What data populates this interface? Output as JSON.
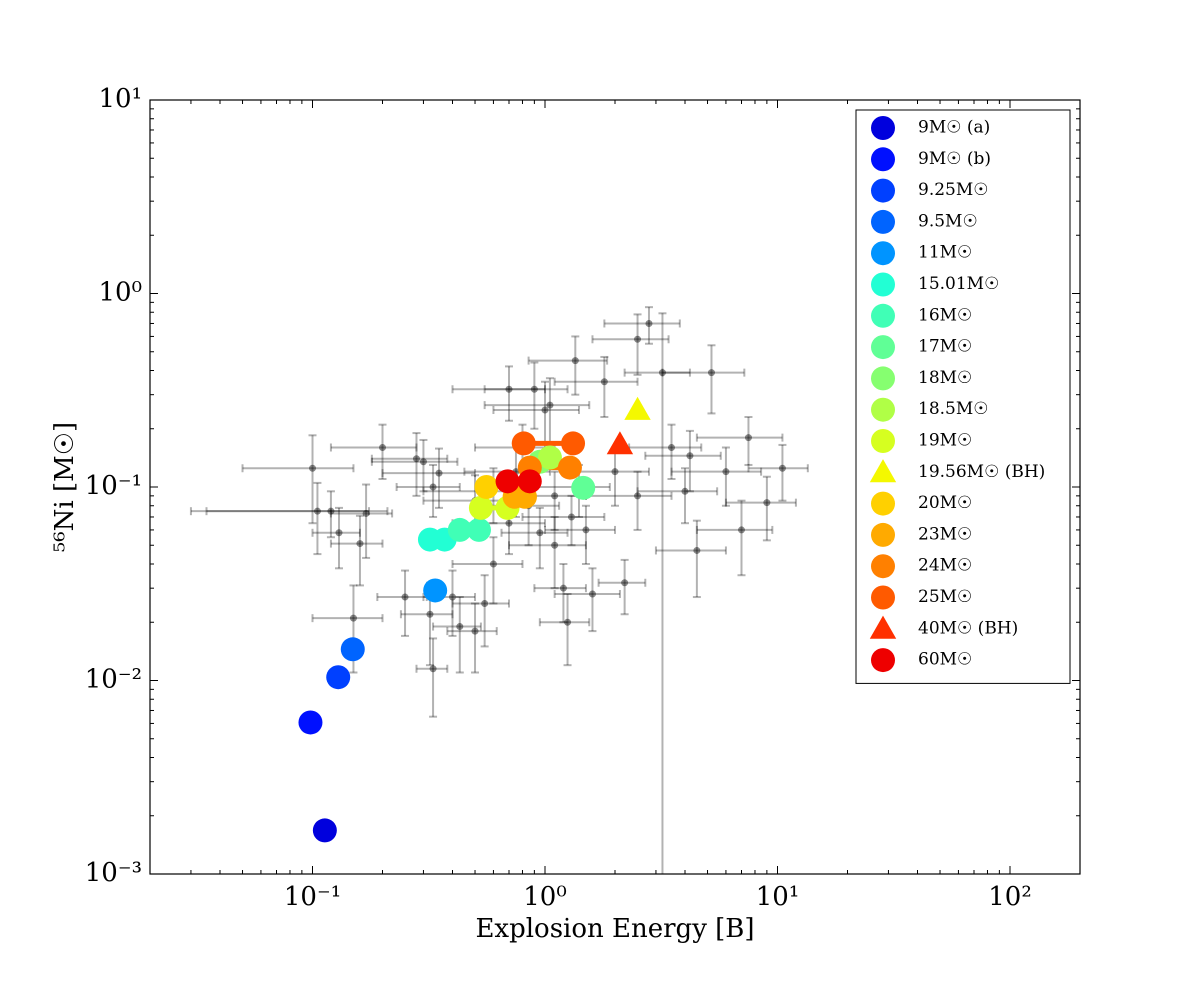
{
  "chart_data": {
    "type": "scatter",
    "xlabel": "Explosion Energy [B]",
    "ylabel": "⁵⁶Ni [M☉]",
    "xlog": true,
    "ylog": true,
    "xlim": [
      0.02,
      200
    ],
    "ylim": [
      0.001,
      10
    ],
    "xticks": [
      {
        "value": 0.1,
        "label": "10⁻¹"
      },
      {
        "value": 1,
        "label": "10⁰"
      },
      {
        "value": 10,
        "label": "10¹"
      },
      {
        "value": 100,
        "label": "10²"
      }
    ],
    "yticks": [
      {
        "value": 0.001,
        "label": "10⁻³"
      },
      {
        "value": 0.01,
        "label": "10⁻²"
      },
      {
        "value": 0.1,
        "label": "10⁻¹"
      },
      {
        "value": 1,
        "label": "10⁰"
      },
      {
        "value": 10,
        "label": "10¹"
      }
    ],
    "legend": "upper right",
    "observations": {
      "color": "#000000",
      "x": [
        0.1,
        0.105,
        0.13,
        0.16,
        0.17,
        0.2,
        0.15,
        0.25,
        0.28,
        0.3,
        0.32,
        0.33,
        0.33,
        0.35,
        0.4,
        0.43,
        0.5,
        0.55,
        0.6,
        0.7,
        0.75,
        0.8,
        0.9,
        0.95,
        1.0,
        1.05,
        1.1,
        1.2,
        1.25,
        1.35,
        1.5,
        1.6,
        1.8,
        2,
        2.2,
        2.5,
        2.8,
        3.2,
        3.5,
        4,
        4.2,
        4.5,
        5.2,
        6,
        7,
        7.5,
        10.5,
        9,
        0.12,
        0.6,
        0.85,
        1.1,
        1.3,
        0.7,
        1.4,
        0.5,
        2.5
      ],
      "values": [
        0.125,
        0.075,
        0.058,
        0.051,
        0.073,
        0.16,
        0.021,
        0.027,
        0.14,
        0.135,
        0.022,
        0.0115,
        0.1,
        0.118,
        0.027,
        0.019,
        0.018,
        0.025,
        0.04,
        0.32,
        0.12,
        0.16,
        0.32,
        0.058,
        0.25,
        0.265,
        0.05,
        0.03,
        0.02,
        0.45,
        0.06,
        0.028,
        0.35,
        0.12,
        0.032,
        0.58,
        0.7,
        0.39,
        0.16,
        0.095,
        0.145,
        0.047,
        0.39,
        0.12,
        0.06,
        0.18,
        0.125,
        0.083,
        0.075,
        0.095,
        0.08,
        0.09,
        0.07,
        0.065,
        0.1,
        0.085,
        0.09
      ],
      "xerr": [
        0.05,
        0.07,
        0.03,
        0.04,
        0.05,
        0.08,
        0.05,
        0.06,
        0.1,
        0.12,
        0.08,
        0.05,
        0.1,
        0.15,
        0.1,
        0.1,
        0.12,
        0.15,
        0.2,
        0.3,
        0.3,
        0.3,
        0.35,
        0.3,
        0.4,
        0.5,
        0.4,
        0.3,
        0.3,
        0.5,
        0.5,
        0.5,
        0.7,
        0.8,
        0.5,
        0.9,
        1.0,
        1.0,
        1.2,
        1.5,
        1.5,
        1.5,
        2.0,
        2.5,
        2.5,
        3,
        3,
        3,
        0.09,
        0.3,
        0.3,
        0.4,
        0.5,
        0.3,
        0.5,
        0.2,
        1
      ],
      "yerr": [
        0.06,
        0.03,
        0.02,
        0.02,
        0.03,
        0.05,
        0.01,
        0.01,
        0.05,
        0.04,
        0.01,
        0.005,
        0.03,
        0.04,
        0.01,
        0.008,
        0.007,
        0.01,
        0.015,
        0.1,
        0.05,
        0.05,
        0.12,
        0.02,
        0.1,
        0.1,
        0.02,
        0.01,
        0.008,
        0.15,
        0.02,
        0.01,
        0.12,
        0.04,
        0.01,
        0.2,
        0.15,
        0.4,
        0.05,
        0.03,
        0.05,
        0.02,
        0.15,
        0.04,
        0.025,
        0.05,
        0.04,
        0.03,
        0.02,
        0.03,
        0.03,
        0.03,
        0.02,
        0.02,
        0.03,
        0.03,
        0.03
      ]
    },
    "series": [
      {
        "name": "9M☉ (a)",
        "color": "#0000dd",
        "marker": "o",
        "x": [
          0.113
        ],
        "values": [
          0.00168
        ]
      },
      {
        "name": "9M☉ (b)",
        "color": "#0010ff",
        "marker": "o",
        "x": [
          0.098
        ],
        "values": [
          0.00607
        ]
      },
      {
        "name": "9.25M☉",
        "color": "#0040ff",
        "marker": "o",
        "x": [
          0.129
        ],
        "values": [
          0.0104
        ]
      },
      {
        "name": "9.5M☉",
        "color": "#0064ff",
        "marker": "o",
        "x": [
          0.149
        ],
        "values": [
          0.0145
        ]
      },
      {
        "name": "11M☉",
        "color": "#0094ff",
        "marker": "o",
        "x": [
          0.337
        ],
        "values": [
          0.0292
        ]
      },
      {
        "name": "15.01M☉",
        "color": "#22ffd4",
        "marker": "o",
        "x": [
          0.32,
          0.37
        ],
        "values": [
          0.0535,
          0.0535
        ]
      },
      {
        "name": "16M☉",
        "color": "#40ffb6",
        "marker": "o",
        "x": [
          0.43,
          0.52
        ],
        "values": [
          0.06,
          0.06
        ]
      },
      {
        "name": "17M☉",
        "color": "#60ff96",
        "marker": "o",
        "x": [
          1.46
        ],
        "values": [
          0.099
        ]
      },
      {
        "name": "18M☉",
        "color": "#86ff70",
        "marker": "o",
        "x": [
          0.95
        ],
        "values": [
          0.135
        ]
      },
      {
        "name": "18.5M☉",
        "color": "#b0ff46",
        "marker": "o",
        "x": [
          1.05
        ],
        "values": [
          0.142
        ]
      },
      {
        "name": "19M☉",
        "color": "#d6ff20",
        "marker": "o",
        "x": [
          0.53,
          0.69
        ],
        "values": [
          0.078,
          0.078
        ]
      },
      {
        "name": "19.56M☉ (BH)",
        "color": "#f4f800",
        "marker": "^",
        "x": [
          2.5
        ],
        "values": [
          0.25
        ]
      },
      {
        "name": "20M☉",
        "color": "#ffd000",
        "marker": "o",
        "x": [
          0.56
        ],
        "values": [
          0.1
        ]
      },
      {
        "name": "23M☉",
        "color": "#ffaa00",
        "marker": "o",
        "x": [
          0.74,
          0.82
        ],
        "values": [
          0.089,
          0.089
        ]
      },
      {
        "name": "24M☉",
        "color": "#ff8000",
        "marker": "o",
        "x": [
          0.86,
          1.28
        ],
        "values": [
          0.126,
          0.126
        ]
      },
      {
        "name": "25M☉",
        "color": "#ff5a00",
        "marker": "o",
        "x": [
          0.81,
          1.32
        ],
        "values": [
          0.168,
          0.168
        ]
      },
      {
        "name": "40M☉ (BH)",
        "color": "#ff3000",
        "marker": "^",
        "x": [
          2.1
        ],
        "values": [
          0.166
        ]
      },
      {
        "name": "60M☉",
        "color": "#ee0000",
        "marker": "o",
        "x": [
          0.69,
          0.86
        ],
        "values": [
          0.107,
          0.107
        ]
      }
    ]
  }
}
